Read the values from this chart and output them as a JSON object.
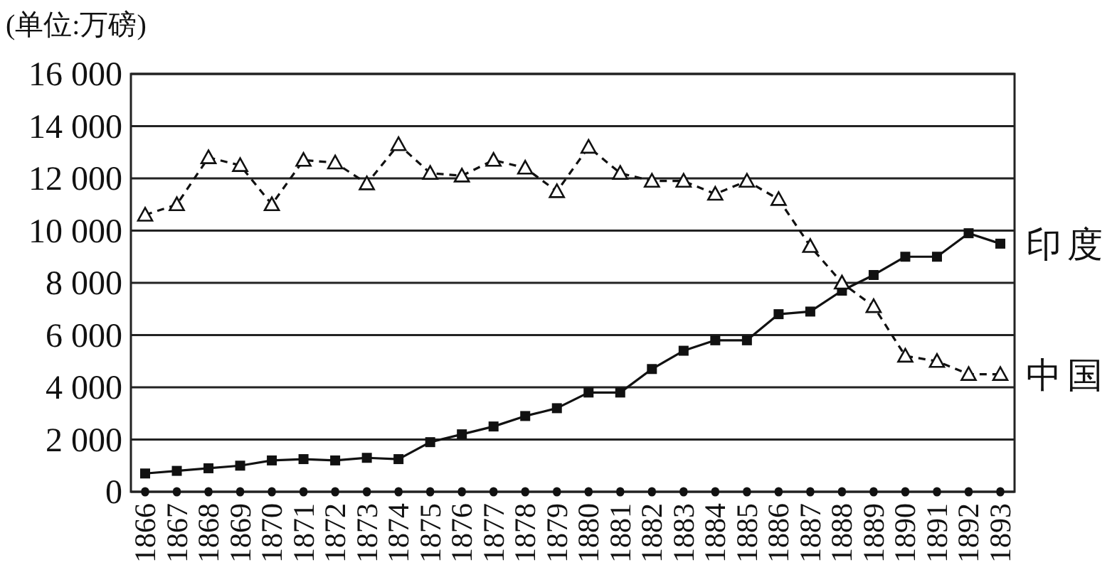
{
  "chart_data": {
    "type": "line",
    "ylabel": "(单位:万磅)",
    "categories": [
      "1866",
      "1867",
      "1868",
      "1869",
      "1870",
      "1871",
      "1872",
      "1873",
      "1874",
      "1875",
      "1876",
      "1877",
      "1878",
      "1879",
      "1880",
      "1881",
      "1882",
      "1883",
      "1884",
      "1885",
      "1886",
      "1887",
      "1888",
      "1889",
      "1890",
      "1891",
      "1892",
      "1893"
    ],
    "series": [
      {
        "name": "印度",
        "color": "#111111",
        "marker": "square",
        "line_style": "solid",
        "values": [
          700,
          800,
          900,
          1000,
          1200,
          1250,
          1200,
          1300,
          1250,
          1900,
          2200,
          2500,
          2900,
          3200,
          3800,
          3800,
          4700,
          5400,
          5800,
          5800,
          6800,
          6900,
          7700,
          8300,
          9000,
          9000,
          9900,
          9500
        ]
      },
      {
        "name": "中国",
        "color": "#111111",
        "marker": "triangle",
        "line_style": "dashed",
        "values": [
          10600,
          11000,
          12800,
          12500,
          11000,
          12700,
          12600,
          11800,
          13300,
          12200,
          12100,
          12700,
          12400,
          11500,
          13200,
          12200,
          11900,
          11900,
          11400,
          11900,
          11200,
          9400,
          8000,
          7100,
          5200,
          5000,
          4500,
          4500
        ]
      }
    ],
    "ylim": [
      0,
      16000
    ],
    "yticks": [
      0,
      {
        "value": 2000,
        "label": "2 000"
      },
      {
        "value": 4000,
        "label": "4 000"
      },
      {
        "value": 6000,
        "label": "6 000"
      },
      {
        "value": 8000,
        "label": "8 000"
      },
      {
        "value": 10000,
        "label": "10 000"
      },
      {
        "value": 12000,
        "label": "12 000"
      },
      {
        "value": 14000,
        "label": "14 000"
      },
      {
        "value": 16000,
        "label": "16 000"
      }
    ],
    "grid": "y",
    "legend": false
  }
}
